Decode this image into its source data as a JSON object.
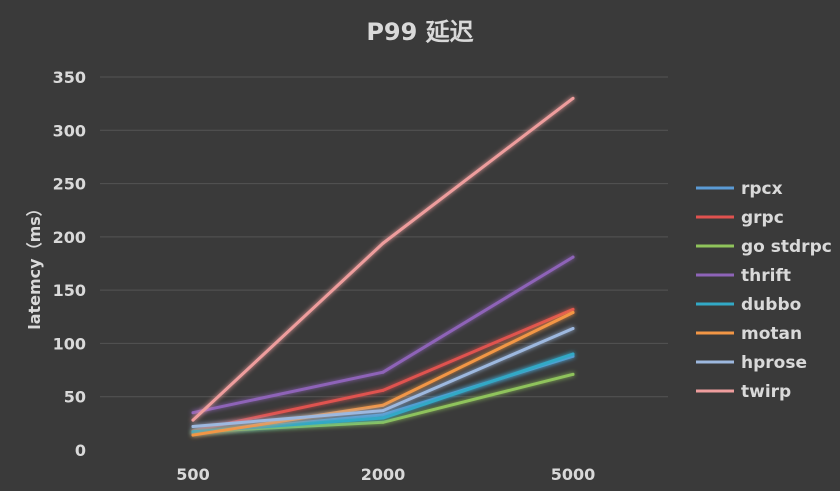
{
  "chart_data": {
    "type": "line",
    "title": "P99 延迟",
    "xlabel": "",
    "ylabel": "latemcy（ms）",
    "categories": [
      "500",
      "2000",
      "5000"
    ],
    "ylim": [
      0,
      350
    ],
    "yticks": [
      0,
      50,
      100,
      150,
      200,
      250,
      300,
      350
    ],
    "grid": true,
    "legend_position": "right",
    "series": [
      {
        "name": "rpcx",
        "values": [
          16,
          33,
          88
        ],
        "color": "#5b9bd5"
      },
      {
        "name": "grpc",
        "values": [
          18,
          56,
          132
        ],
        "color": "#e0524f"
      },
      {
        "name": "go stdrpc",
        "values": [
          17,
          26,
          71
        ],
        "color": "#8fc35b"
      },
      {
        "name": "thrift",
        "values": [
          35,
          73,
          181
        ],
        "color": "#8e64b8"
      },
      {
        "name": "dubbo",
        "values": [
          17,
          30,
          90
        ],
        "color": "#32a9c6"
      },
      {
        "name": "motan",
        "values": [
          14,
          42,
          129
        ],
        "color": "#f29645"
      },
      {
        "name": "hprose",
        "values": [
          22,
          37,
          114
        ],
        "color": "#9db8df"
      },
      {
        "name": "twirp",
        "values": [
          28,
          194,
          330
        ],
        "color": "#ee9d9d"
      }
    ]
  }
}
